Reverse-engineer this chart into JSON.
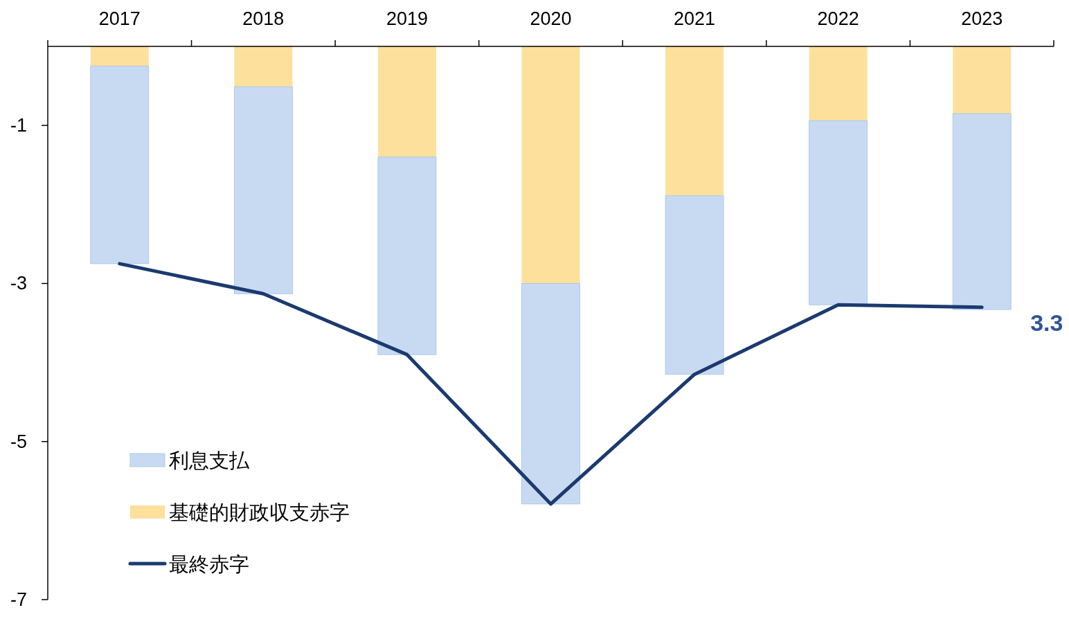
{
  "chart_data": {
    "type": "bar",
    "stacked": true,
    "categories": [
      "2017",
      "2018",
      "2019",
      "2020",
      "2021",
      "2022",
      "2023"
    ],
    "series": [
      {
        "name": "基礎的財政収支赤字",
        "color": "#fde09b",
        "values": [
          -0.25,
          -0.51,
          -1.4,
          -3.0,
          -1.89,
          -0.94,
          -0.85
        ]
      },
      {
        "name": "利息支払",
        "color": "#c8daf2",
        "values": [
          -2.5,
          -2.62,
          -2.5,
          -2.79,
          -2.26,
          -2.33,
          -2.48
        ]
      },
      {
        "name": "最終赤字",
        "type": "line",
        "color": "#1b3a6f",
        "values": [
          -2.75,
          -3.13,
          -3.9,
          -5.79,
          -4.15,
          -3.27,
          -3.3
        ]
      }
    ],
    "annotations": [
      "3.3"
    ],
    "ylim": [
      -7,
      0
    ],
    "yticks": [
      -1,
      -3,
      -5,
      -7
    ],
    "grid": false,
    "legend": "bottom left"
  }
}
